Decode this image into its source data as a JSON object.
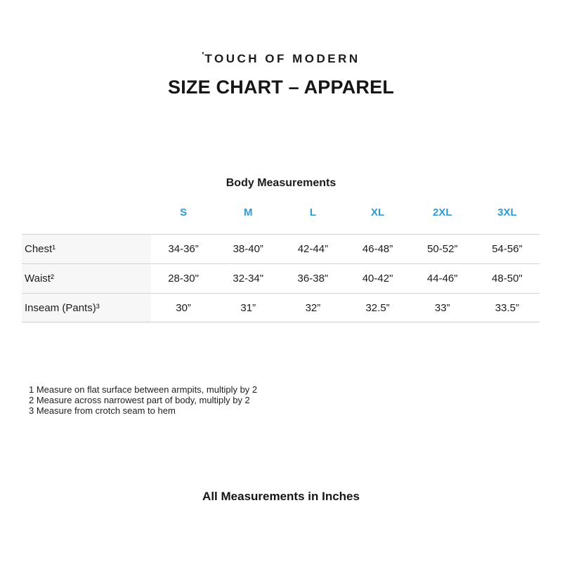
{
  "brand": {
    "mark": "'",
    "name": "TOUCH OF MODERN"
  },
  "title": "SIZE CHART – APPAREL",
  "table": {
    "caption": "Body Measurements",
    "columns": [
      "S",
      "M",
      "L",
      "XL",
      "2XL",
      "3XL"
    ],
    "rows": [
      {
        "label": "Chest¹",
        "values": [
          "34-36”",
          "38-40”",
          "42-44”",
          "46-48”",
          "50-52”",
          "54-56”"
        ]
      },
      {
        "label": "Waist²",
        "values": [
          "28-30\"",
          "32-34\"",
          "36-38\"",
          "40-42\"",
          "44-46\"",
          "48-50\""
        ]
      },
      {
        "label": "Inseam (Pants)³",
        "values": [
          "30”",
          "31”",
          "32”",
          "32.5”",
          "33”",
          "33.5”"
        ]
      }
    ]
  },
  "footnotes": [
    "1 Measure on flat surface between armpits, multiply by 2",
    "2 Measure across narrowest part of body, multiply by 2",
    "3 Measure from crotch seam to hem"
  ],
  "footer": "All Measurements in Inches",
  "colors": {
    "accent_blue": "#2e9ad6",
    "label_cell_bg": "#f7f7f7",
    "row_border": "#d2d2d2",
    "text": "#1b1b1b"
  }
}
